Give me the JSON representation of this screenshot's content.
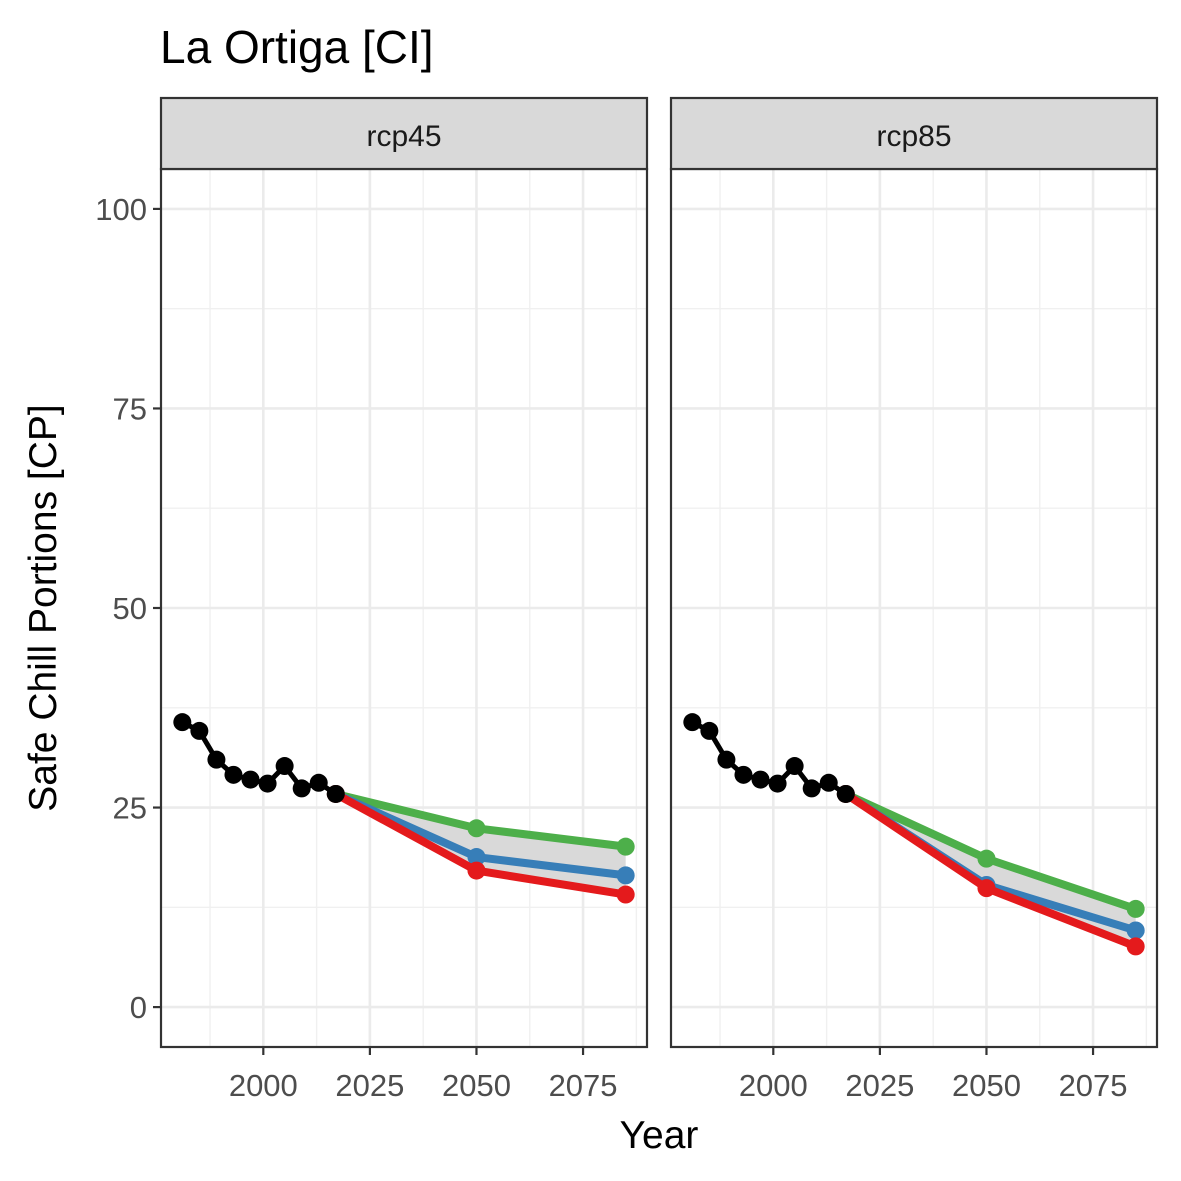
{
  "title": "La Ortiga [CI]",
  "chart_data": {
    "type": "line",
    "title": "La Ortiga [CI]",
    "xlabel": "Year",
    "ylabel": "Safe Chill Portions [CP]",
    "xlim": [
      1976,
      2090
    ],
    "ylim": [
      -5,
      105
    ],
    "x_ticks": [
      2000,
      2025,
      2050,
      2075
    ],
    "y_ticks": [
      0,
      25,
      50,
      75,
      100
    ],
    "grid": true,
    "legend": "none",
    "colors": {
      "historic": "#000000",
      "optimistic": "#4daf4a",
      "intermediate": "#377eb8",
      "pessimistic": "#e41a1c",
      "ribbon": "#d9d9d9"
    },
    "panels": [
      {
        "facet": "rcp45",
        "series": [
          {
            "role": "historic",
            "x": [
              1981,
              1985,
              1989,
              1993,
              1997,
              2001,
              2005,
              2009,
              2013,
              2017
            ],
            "y": [
              35.7,
              34.6,
              31.0,
              29.1,
              28.5,
              28.0,
              30.2,
              27.4,
              28.1,
              26.7
            ]
          },
          {
            "role": "optimistic",
            "x": [
              2017,
              2050,
              2085
            ],
            "y": [
              26.7,
              22.4,
              20.1
            ]
          },
          {
            "role": "intermediate",
            "x": [
              2017,
              2050,
              2085
            ],
            "y": [
              26.7,
              18.8,
              16.5
            ]
          },
          {
            "role": "pessimistic",
            "x": [
              2017,
              2050,
              2085
            ],
            "y": [
              26.7,
              17.1,
              14.1
            ]
          }
        ]
      },
      {
        "facet": "rcp85",
        "series": [
          {
            "role": "historic",
            "x": [
              1981,
              1985,
              1989,
              1993,
              1997,
              2001,
              2005,
              2009,
              2013,
              2017
            ],
            "y": [
              35.7,
              34.6,
              31.0,
              29.1,
              28.5,
              28.0,
              30.2,
              27.4,
              28.1,
              26.7
            ]
          },
          {
            "role": "optimistic",
            "x": [
              2017,
              2050,
              2085
            ],
            "y": [
              26.7,
              18.6,
              12.3
            ]
          },
          {
            "role": "intermediate",
            "x": [
              2017,
              2050,
              2085
            ],
            "y": [
              26.7,
              15.3,
              9.6
            ]
          },
          {
            "role": "pessimistic",
            "x": [
              2017,
              2050,
              2085
            ],
            "y": [
              26.7,
              14.9,
              7.6
            ]
          }
        ]
      }
    ]
  }
}
